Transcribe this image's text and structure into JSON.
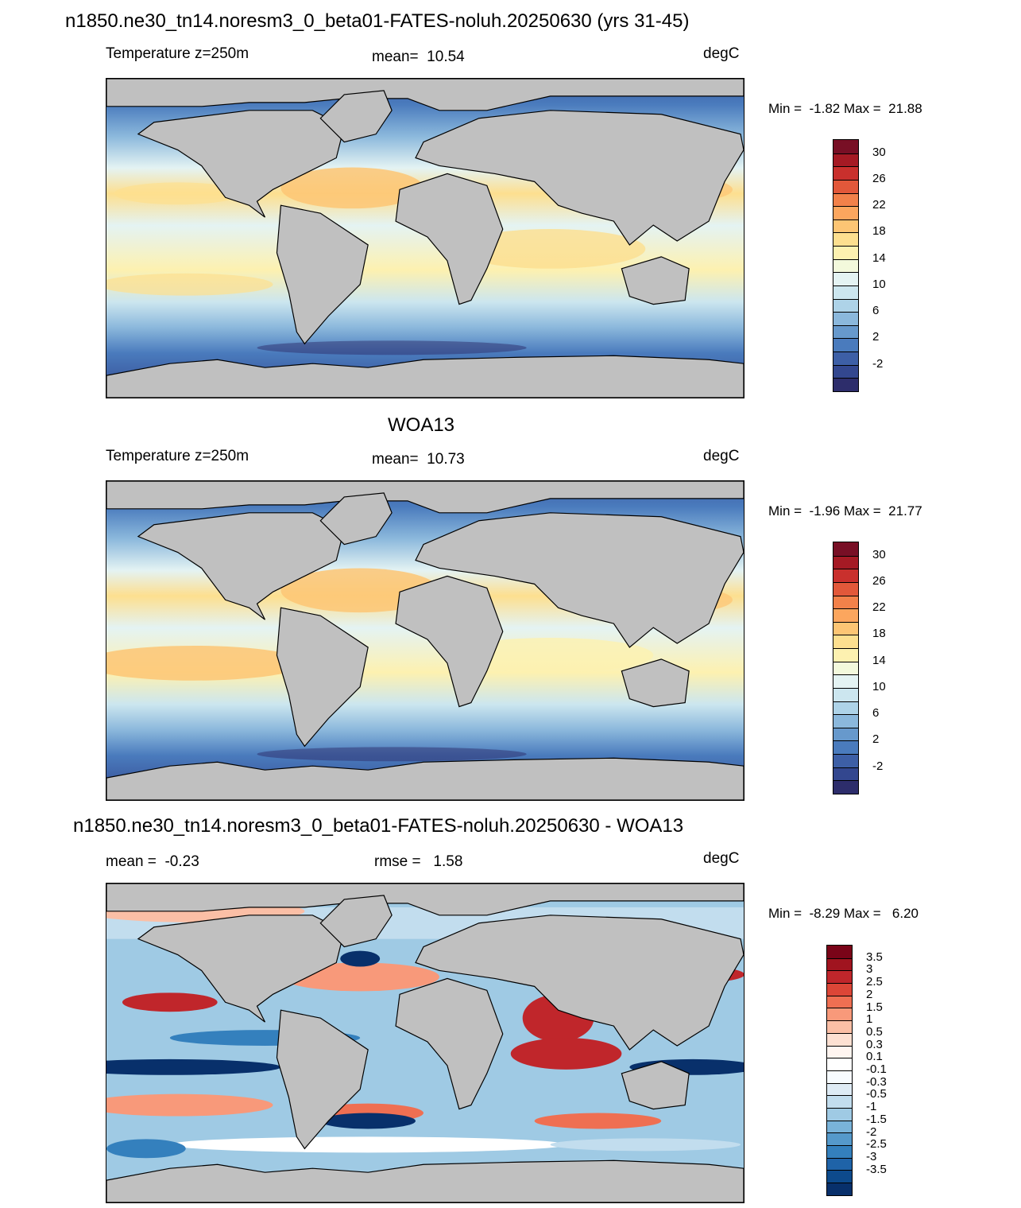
{
  "main_title": "n1850.ne30_tn14.noresm3_0_beta01-FATES-noluh.20250630 (yrs 31-45)",
  "panels": [
    {
      "id": "model",
      "header": "",
      "left_label": "Temperature z=250m",
      "center_label": "mean=  10.54",
      "units": "degC",
      "minmax": "Min =  -1.82 Max =  21.88",
      "colorbar": {
        "colors": [
          "#2d2d6b",
          "#33478f",
          "#3d5fa6",
          "#4a7bbd",
          "#6799cc",
          "#8bb8dc",
          "#aed3e8",
          "#cce6ef",
          "#e4f3f3",
          "#f3f9dc",
          "#fdf1b0",
          "#fddf8f",
          "#fdc574",
          "#fca65e",
          "#f2814a",
          "#e2583a",
          "#c9302d",
          "#a51a24",
          "#780f25"
        ],
        "labels": [
          "30",
          "26",
          "22",
          "18",
          "14",
          "10",
          "6",
          "2",
          "-2"
        ]
      }
    },
    {
      "id": "obs",
      "header": "WOA13",
      "left_label": "Temperature z=250m",
      "center_label": "mean=  10.73",
      "units": "degC",
      "minmax": "Min =  -1.96 Max =  21.77",
      "colorbar": {
        "colors": [
          "#2d2d6b",
          "#33478f",
          "#3d5fa6",
          "#4a7bbd",
          "#6799cc",
          "#8bb8dc",
          "#aed3e8",
          "#cce6ef",
          "#e4f3f3",
          "#f3f9dc",
          "#fdf1b0",
          "#fddf8f",
          "#fdc574",
          "#fca65e",
          "#f2814a",
          "#e2583a",
          "#c9302d",
          "#a51a24",
          "#780f25"
        ],
        "labels": [
          "30",
          "26",
          "22",
          "18",
          "14",
          "10",
          "6",
          "2",
          "-2"
        ]
      }
    },
    {
      "id": "diff",
      "header": "n1850.ne30_tn14.noresm3_0_beta01-FATES-noluh.20250630 - WOA13",
      "left_label": "mean =  -0.23",
      "center_label": "rmse =   1.58",
      "units": "degC",
      "minmax": "Min =  -8.29 Max =   6.20",
      "colorbar": {
        "colors": [
          "#08306b",
          "#0d4a8c",
          "#1f63a8",
          "#3480bd",
          "#5599cb",
          "#79b3d9",
          "#9fcae4",
          "#c2ddee",
          "#deebf5",
          "#f7fbff",
          "#ffffff",
          "#fff5f0",
          "#fde0d2",
          "#fbbfa6",
          "#f8997a",
          "#ef6f52",
          "#dc4637",
          "#c0262b",
          "#a0141f",
          "#7a0418"
        ],
        "labels": [
          "3.5",
          "3",
          "2.5",
          "2",
          "1.5",
          "1",
          "0.5",
          "0.3",
          "0.1",
          "-0.1",
          "-0.3",
          "-0.5",
          "-1",
          "-1.5",
          "-2",
          "-2.5",
          "-3",
          "-3.5"
        ]
      }
    }
  ]
}
